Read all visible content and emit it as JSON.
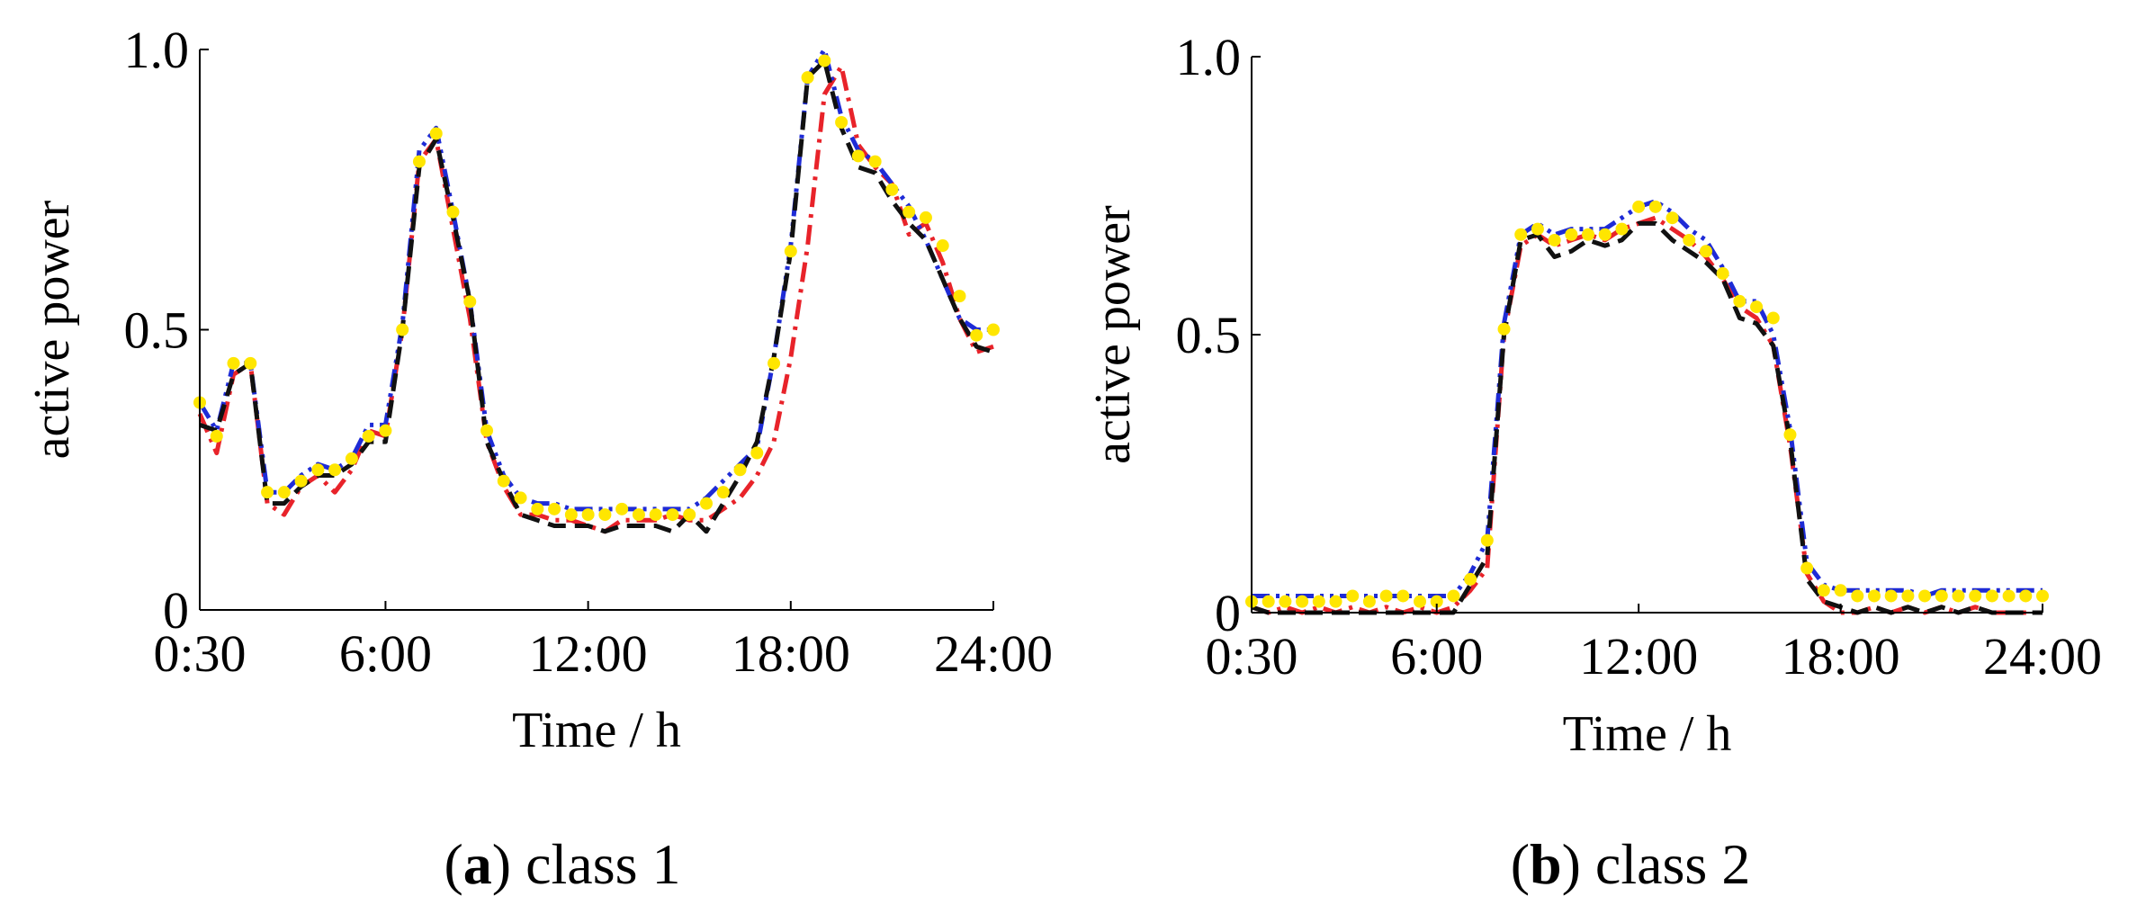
{
  "chart_data": [
    {
      "type": "line",
      "caption_letter": "a",
      "caption_text": ") class 1",
      "caption_open": "(",
      "xlabel": "Time / h",
      "ylabel": "active power",
      "xlim": [
        0.5,
        24
      ],
      "ylim": [
        0,
        1
      ],
      "xticks": [
        0.5,
        6,
        12,
        18,
        24
      ],
      "xtick_labels": [
        "0:30",
        "6:00",
        "12:00",
        "18:00",
        "24:00"
      ],
      "yticks": [
        0,
        0.5,
        1
      ],
      "ytick_labels": [
        "0",
        "0.5",
        "1.0"
      ],
      "grid": false,
      "x": [
        0.5,
        1,
        1.5,
        2,
        2.5,
        3,
        3.5,
        4,
        4.5,
        5,
        5.5,
        6,
        6.5,
        7,
        7.5,
        8,
        8.5,
        9,
        9.5,
        10,
        10.5,
        11,
        11.5,
        12,
        12.5,
        13,
        13.5,
        14,
        14.5,
        15,
        15.5,
        16,
        16.5,
        17,
        17.5,
        18,
        18.5,
        19,
        19.5,
        20,
        20.5,
        21,
        21.5,
        22,
        22.5,
        23,
        23.5,
        24
      ],
      "series": [
        {
          "name": "red",
          "color": "#e8232a",
          "dash": "dashdot",
          "values": [
            0.35,
            0.28,
            0.42,
            0.44,
            0.19,
            0.17,
            0.22,
            0.24,
            0.21,
            0.25,
            0.32,
            0.31,
            0.5,
            0.8,
            0.84,
            0.68,
            0.52,
            0.3,
            0.22,
            0.17,
            0.17,
            0.16,
            0.16,
            0.15,
            0.14,
            0.16,
            0.16,
            0.16,
            0.17,
            0.16,
            0.16,
            0.18,
            0.2,
            0.24,
            0.3,
            0.45,
            0.65,
            0.92,
            0.97,
            0.83,
            0.79,
            0.76,
            0.67,
            0.69,
            0.62,
            0.52,
            0.46,
            0.47
          ]
        },
        {
          "name": "blue",
          "color": "#1e2bd6",
          "dash": "dashdotdot",
          "values": [
            0.37,
            0.32,
            0.44,
            0.44,
            0.21,
            0.21,
            0.24,
            0.26,
            0.25,
            0.27,
            0.33,
            0.33,
            0.51,
            0.82,
            0.86,
            0.71,
            0.55,
            0.32,
            0.24,
            0.2,
            0.19,
            0.19,
            0.18,
            0.18,
            0.18,
            0.18,
            0.18,
            0.18,
            0.18,
            0.18,
            0.2,
            0.23,
            0.26,
            0.29,
            0.45,
            0.65,
            0.95,
            1.0,
            0.88,
            0.82,
            0.8,
            0.76,
            0.72,
            0.66,
            0.59,
            0.52,
            0.5,
            0.5
          ]
        },
        {
          "name": "black",
          "color": "#111111",
          "dash": "dash",
          "values": [
            0.33,
            0.32,
            0.42,
            0.44,
            0.19,
            0.19,
            0.22,
            0.24,
            0.24,
            0.26,
            0.3,
            0.3,
            0.5,
            0.79,
            0.84,
            0.7,
            0.55,
            0.3,
            0.23,
            0.17,
            0.16,
            0.15,
            0.15,
            0.15,
            0.14,
            0.15,
            0.15,
            0.15,
            0.14,
            0.17,
            0.14,
            0.19,
            0.24,
            0.3,
            0.45,
            0.64,
            0.95,
            0.98,
            0.86,
            0.79,
            0.78,
            0.73,
            0.69,
            0.66,
            0.59,
            0.52,
            0.47,
            0.46
          ]
        },
        {
          "name": "yellow",
          "color": "#ffe600",
          "dash": "dots",
          "values": [
            0.37,
            0.31,
            0.44,
            0.44,
            0.21,
            0.21,
            0.23,
            0.25,
            0.25,
            0.27,
            0.31,
            0.32,
            0.5,
            0.8,
            0.85,
            0.71,
            0.55,
            0.32,
            0.23,
            0.2,
            0.18,
            0.18,
            0.17,
            0.17,
            0.17,
            0.18,
            0.17,
            0.17,
            0.17,
            0.17,
            0.19,
            0.21,
            0.25,
            0.28,
            0.44,
            0.64,
            0.95,
            0.98,
            0.87,
            0.81,
            0.8,
            0.75,
            0.71,
            0.7,
            0.65,
            0.56,
            0.49,
            0.5
          ]
        }
      ]
    },
    {
      "type": "line",
      "caption_letter": "b",
      "caption_text": ") class 2",
      "caption_open": "(",
      "xlabel": "Time / h",
      "ylabel": "active power",
      "xlim": [
        0.5,
        24
      ],
      "ylim": [
        0,
        1
      ],
      "xticks": [
        0.5,
        6,
        12,
        18,
        24
      ],
      "xtick_labels": [
        "0:30",
        "6:00",
        "12:00",
        "18:00",
        "24:00"
      ],
      "yticks": [
        0,
        0.5,
        1
      ],
      "ytick_labels": [
        "0",
        "0.5",
        "1.0"
      ],
      "grid": false,
      "x": [
        0.5,
        1,
        1.5,
        2,
        2.5,
        3,
        3.5,
        4,
        4.5,
        5,
        5.5,
        6,
        6.5,
        7,
        7.5,
        8,
        8.5,
        9,
        9.5,
        10,
        10.5,
        11,
        11.5,
        12,
        12.5,
        13,
        13.5,
        14,
        14.5,
        15,
        15.5,
        16,
        16.5,
        17,
        17.5,
        18,
        18.5,
        19,
        19.5,
        20,
        20.5,
        21,
        21.5,
        22,
        22.5,
        23,
        23.5,
        24
      ],
      "series": [
        {
          "name": "red",
          "color": "#e8232a",
          "dash": "dashdot",
          "values": [
            0.01,
            0.0,
            0.01,
            0.0,
            0.01,
            0.0,
            0.01,
            0.0,
            0.01,
            0.0,
            0.01,
            0.0,
            0.01,
            0.04,
            0.08,
            0.5,
            0.66,
            0.68,
            0.66,
            0.67,
            0.68,
            0.67,
            0.69,
            0.7,
            0.71,
            0.69,
            0.67,
            0.64,
            0.6,
            0.55,
            0.53,
            0.48,
            0.3,
            0.07,
            0.02,
            0.0,
            0.0,
            0.01,
            0.0,
            0.01,
            0.0,
            0.01,
            0.0,
            0.01,
            0.0,
            0.0,
            0.0,
            0.0
          ]
        },
        {
          "name": "blue",
          "color": "#1e2bd6",
          "dash": "dashdotdot",
          "values": [
            0.03,
            0.03,
            0.03,
            0.03,
            0.03,
            0.03,
            0.03,
            0.03,
            0.03,
            0.03,
            0.03,
            0.03,
            0.03,
            0.07,
            0.13,
            0.52,
            0.68,
            0.7,
            0.68,
            0.69,
            0.69,
            0.69,
            0.71,
            0.73,
            0.74,
            0.72,
            0.69,
            0.67,
            0.62,
            0.56,
            0.56,
            0.5,
            0.33,
            0.09,
            0.05,
            0.04,
            0.04,
            0.04,
            0.04,
            0.04,
            0.03,
            0.04,
            0.04,
            0.04,
            0.04,
            0.04,
            0.04,
            0.04
          ]
        },
        {
          "name": "black",
          "color": "#111111",
          "dash": "dash",
          "values": [
            0.01,
            0.0,
            0.0,
            0.0,
            0.0,
            0.0,
            0.0,
            0.0,
            0.0,
            0.0,
            0.0,
            0.0,
            0.0,
            0.05,
            0.1,
            0.5,
            0.67,
            0.68,
            0.64,
            0.65,
            0.67,
            0.66,
            0.67,
            0.7,
            0.7,
            0.67,
            0.65,
            0.63,
            0.6,
            0.53,
            0.52,
            0.48,
            0.31,
            0.06,
            0.02,
            0.01,
            0.0,
            0.01,
            0.0,
            0.01,
            0.0,
            0.01,
            0.0,
            0.01,
            0.0,
            0.0,
            0.0,
            0.0
          ]
        },
        {
          "name": "yellow",
          "color": "#ffe600",
          "dash": "dots",
          "values": [
            0.02,
            0.02,
            0.02,
            0.02,
            0.02,
            0.02,
            0.03,
            0.02,
            0.03,
            0.03,
            0.02,
            0.02,
            0.03,
            0.06,
            0.13,
            0.51,
            0.68,
            0.69,
            0.67,
            0.68,
            0.68,
            0.68,
            0.69,
            0.73,
            0.73,
            0.71,
            0.67,
            0.65,
            0.61,
            0.56,
            0.55,
            0.53,
            0.32,
            0.08,
            0.04,
            0.04,
            0.03,
            0.03,
            0.03,
            0.03,
            0.03,
            0.03,
            0.03,
            0.03,
            0.03,
            0.03,
            0.03,
            0.03
          ]
        }
      ]
    }
  ]
}
